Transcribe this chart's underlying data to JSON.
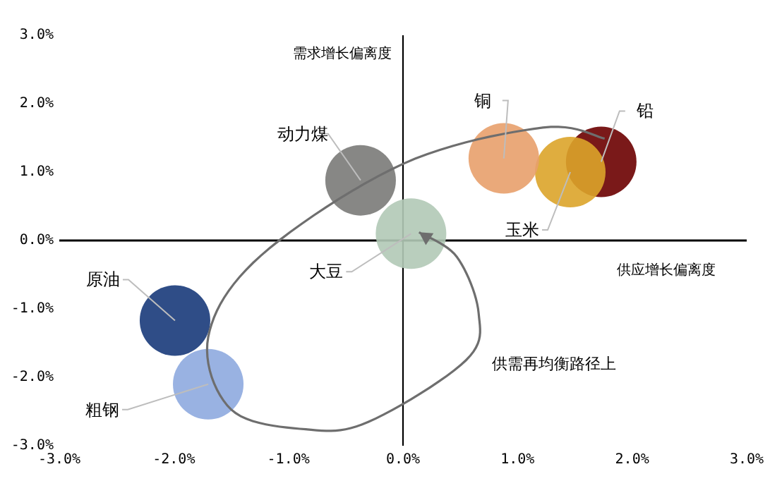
{
  "chart_data": {
    "type": "bubble",
    "xlabel": "供应增长偏离度",
    "ylabel": "需求增长偏离度",
    "xlim": [
      -3,
      3
    ],
    "xticks": [
      {
        "value": -3,
        "label": "-3.0%"
      },
      {
        "value": -2,
        "label": "-2.0%"
      },
      {
        "value": -1,
        "label": "-1.0%"
      },
      {
        "value": 0,
        "label": "0.0%"
      },
      {
        "value": 1,
        "label": "1.0%"
      },
      {
        "value": 2,
        "label": "2.0%"
      },
      {
        "value": 3,
        "label": "3.0%"
      }
    ],
    "ylim": [
      -3,
      3
    ],
    "yticks": [
      {
        "value": -3,
        "label": "-3.0%"
      },
      {
        "value": -2,
        "label": "-2.0%"
      },
      {
        "value": -1,
        "label": "-1.0%"
      },
      {
        "value": 0,
        "label": "0.0%"
      },
      {
        "value": 1,
        "label": "1.0%"
      },
      {
        "value": 2,
        "label": "2.0%"
      },
      {
        "value": 3,
        "label": "3.0%"
      }
    ],
    "series": [
      {
        "name": "动力煤",
        "color": "#7a7a78",
        "x": [
          -0.37
        ],
        "values": [
          0.88
        ],
        "sizes": [
          1
        ]
      },
      {
        "name": "大豆",
        "color": "#b1c9b6",
        "x": [
          0.07
        ],
        "values": [
          0.1
        ],
        "sizes": [
          1
        ]
      },
      {
        "name": "铜",
        "color": "#e8a06b",
        "x": [
          0.88
        ],
        "values": [
          1.2
        ],
        "sizes": [
          1
        ]
      },
      {
        "name": "玉米",
        "color": "#dba42a",
        "x": [
          1.46
        ],
        "values": [
          1.0
        ],
        "sizes": [
          1
        ]
      },
      {
        "name": "铅",
        "color": "#6b0000",
        "x": [
          1.73
        ],
        "values": [
          1.15
        ],
        "sizes": [
          1
        ]
      },
      {
        "name": "原油",
        "color": "#183a7a",
        "x": [
          -1.99
        ],
        "values": [
          -1.17
        ],
        "sizes": [
          1
        ]
      },
      {
        "name": "粗钢",
        "color": "#8eaadf",
        "x": [
          -1.7
        ],
        "values": [
          -2.1
        ],
        "sizes": [
          1
        ]
      }
    ],
    "ref_lines": [
      {
        "axis": "x",
        "value": 0,
        "color": "#000000"
      },
      {
        "axis": "y",
        "value": 0,
        "color": "#000000"
      }
    ],
    "annotations": [
      "供需再均衡路径上"
    ],
    "legend": false,
    "grid": false
  }
}
